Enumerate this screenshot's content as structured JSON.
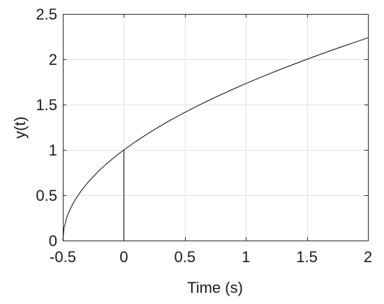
{
  "chart_data": {
    "type": "line",
    "title": "",
    "xlabel": "Time (s)",
    "ylabel": "y(t)",
    "xlim": [
      -0.5,
      2
    ],
    "ylim": [
      0,
      2.5
    ],
    "grid": true,
    "xticks": [
      -0.5,
      0,
      0.5,
      1,
      1.5,
      2
    ],
    "xtick_labels": [
      "-0.5",
      "0",
      "0.5",
      "1",
      "1.5",
      "2"
    ],
    "yticks": [
      0,
      0.5,
      1,
      1.5,
      2,
      2.5
    ],
    "ytick_labels": [
      "0",
      "0.5",
      "1",
      "1.5",
      "2",
      "2.5"
    ],
    "series": [
      {
        "x": [
          -0.5,
          -0.49,
          -0.47,
          -0.45,
          -0.42,
          -0.4,
          -0.35,
          -0.3,
          -0.25,
          -0.2,
          -0.15,
          -0.1,
          -0.05,
          0,
          0.1,
          0.2,
          0.3,
          0.4,
          0.5,
          0.6,
          0.7,
          0.8,
          0.9,
          1.0,
          1.1,
          1.2,
          1.3,
          1.4,
          1.5,
          1.6,
          1.7,
          1.8,
          1.9,
          2.0
        ],
        "y": [
          0,
          0.141,
          0.245,
          0.316,
          0.4,
          0.447,
          0.548,
          0.632,
          0.707,
          0.775,
          0.837,
          0.894,
          0.949,
          1.0,
          1.095,
          1.183,
          1.265,
          1.342,
          1.414,
          1.483,
          1.549,
          1.612,
          1.673,
          1.732,
          1.789,
          1.844,
          1.897,
          1.949,
          2.0,
          2.049,
          2.098,
          2.145,
          2.191,
          2.236
        ]
      }
    ],
    "annotations": [
      {
        "type": "vertical_line",
        "x": 0,
        "y_from": 0,
        "y_to": 1.0
      }
    ]
  }
}
